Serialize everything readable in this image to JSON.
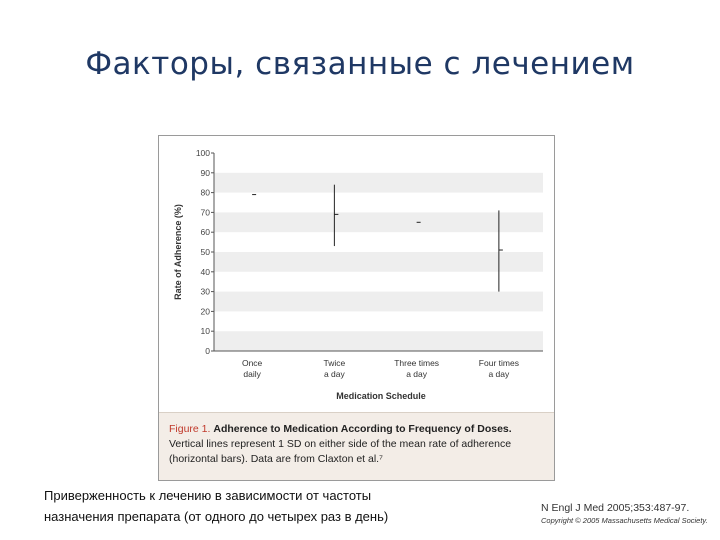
{
  "slide": {
    "title": "Факторы, связанные с лечением"
  },
  "chart_data": {
    "type": "scatter",
    "ylabel": "Rate of Adherence (%)",
    "xlabel": "Medication Schedule",
    "ylim": [
      0,
      100
    ],
    "yticks": [
      0,
      10,
      20,
      30,
      40,
      50,
      60,
      70,
      80,
      90,
      100
    ],
    "categories": [
      [
        "Once",
        "daily"
      ],
      [
        "Twice",
        "a day"
      ],
      [
        "Three times",
        "a day"
      ],
      [
        "Four times",
        "a day"
      ]
    ],
    "means": [
      79,
      69,
      65,
      51
    ],
    "sd_low": [
      79,
      53,
      65,
      30
    ],
    "sd_high": [
      79,
      84,
      65,
      71
    ],
    "grid": true,
    "colors": {
      "band": "#eeeeee",
      "mark": "#222222",
      "axis": "#555555"
    }
  },
  "caption": {
    "figure_label": "Figure 1.",
    "figure_title": "Adherence to Medication According to Frequency of Doses.",
    "line1": "Vertical lines represent 1 SD on either side of the mean rate of adherence",
    "line2": "(horizontal bars). Data are from Claxton et al.⁷"
  },
  "footer": {
    "line1": "Приверженность к лечению в зависимости от частоты",
    "line2": "назначения препарата (от одного до четырех раз в день)"
  },
  "citation": {
    "main": "N Engl J Med 2005;353:487-97.",
    "copyright": "Copyright © 2005 Massachusetts Medical Society."
  }
}
